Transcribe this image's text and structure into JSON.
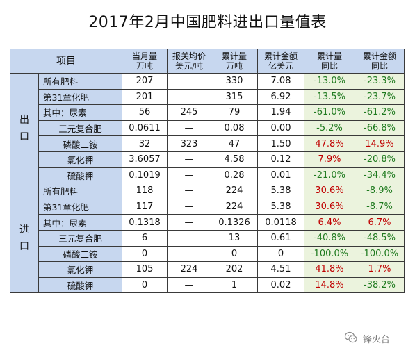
{
  "title": "2017年2月中国肥料进出口量值表",
  "headers": {
    "item": "项目",
    "month_qty": [
      "当月量",
      "万吨"
    ],
    "avg_price": [
      "报关均价",
      "美元/吨"
    ],
    "cum_qty": [
      "累计量",
      "万吨"
    ],
    "cum_value": [
      "累计金额",
      "亿美元"
    ],
    "qty_yoy": [
      "累计量",
      "同比"
    ],
    "value_yoy": [
      "累计金额",
      "同比"
    ]
  },
  "sections": [
    {
      "label": "出\n口",
      "rows": [
        {
          "name": "所有肥料",
          "sub": false,
          "month_qty": "207",
          "avg_price": "—",
          "cum_qty": "330",
          "cum_value": "7.08",
          "qty_yoy": "-13.0%",
          "value_yoy": "-23.3%"
        },
        {
          "name": "第31章化肥",
          "sub": false,
          "month_qty": "201",
          "avg_price": "—",
          "cum_qty": "315",
          "cum_value": "6.92",
          "qty_yoy": "-13.5%",
          "value_yoy": "-23.7%"
        },
        {
          "name": "其中：尿素",
          "sub": false,
          "month_qty": "56",
          "avg_price": "245",
          "cum_qty": "79",
          "cum_value": "1.94",
          "qty_yoy": "-61.0%",
          "value_yoy": "-61.2%"
        },
        {
          "name": "三元复合肥",
          "sub": true,
          "month_qty": "0.0611",
          "avg_price": "—",
          "cum_qty": "0.08",
          "cum_value": "0.00",
          "qty_yoy": "-5.2%",
          "value_yoy": "-66.8%"
        },
        {
          "name": "磷酸二铵",
          "sub": true,
          "month_qty": "32",
          "avg_price": "323",
          "cum_qty": "47",
          "cum_value": "1.50",
          "qty_yoy": "47.8%",
          "value_yoy": "14.9%"
        },
        {
          "name": "氯化钾",
          "sub": true,
          "month_qty": "3.6057",
          "avg_price": "—",
          "cum_qty": "4.58",
          "cum_value": "0.12",
          "qty_yoy": "7.9%",
          "value_yoy": "-20.8%"
        },
        {
          "name": "硫酸钾",
          "sub": true,
          "month_qty": "0.1019",
          "avg_price": "—",
          "cum_qty": "0.28",
          "cum_value": "0.01",
          "qty_yoy": "-21.0%",
          "value_yoy": "-34.4%"
        }
      ]
    },
    {
      "label": "进\n口",
      "rows": [
        {
          "name": "所有肥料",
          "sub": false,
          "month_qty": "118",
          "avg_price": "—",
          "cum_qty": "224",
          "cum_value": "5.38",
          "qty_yoy": "30.6%",
          "value_yoy": "-8.9%"
        },
        {
          "name": "第31章化肥",
          "sub": false,
          "month_qty": "117",
          "avg_price": "—",
          "cum_qty": "224",
          "cum_value": "5.38",
          "qty_yoy": "30.6%",
          "value_yoy": "-8.7%"
        },
        {
          "name": "其中：尿素",
          "sub": false,
          "month_qty": "0.1318",
          "avg_price": "—",
          "cum_qty": "0.1326",
          "cum_value": "0.0118",
          "qty_yoy": "6.4%",
          "value_yoy": "6.7%"
        },
        {
          "name": "三元复合肥",
          "sub": true,
          "month_qty": "6",
          "avg_price": "—",
          "cum_qty": "13",
          "cum_value": "0.61",
          "qty_yoy": "-40.8%",
          "value_yoy": "-48.5%"
        },
        {
          "name": "磷酸二铵",
          "sub": true,
          "month_qty": "0",
          "avg_price": "—",
          "cum_qty": "0",
          "cum_value": "0",
          "qty_yoy": "-100.0%",
          "value_yoy": "-100.0%"
        },
        {
          "name": "氯化钾",
          "sub": true,
          "month_qty": "105",
          "avg_price": "224",
          "cum_qty": "202",
          "cum_value": "4.51",
          "qty_yoy": "41.8%",
          "value_yoy": "1.7%"
        },
        {
          "name": "硫酸钾",
          "sub": true,
          "month_qty": "0",
          "avg_price": "—",
          "cum_qty": "1",
          "cum_value": "0.02",
          "qty_yoy": "14.8%",
          "value_yoy": "-38.2%"
        }
      ]
    }
  ],
  "watermark": {
    "text": "锋火台",
    "icon": "wechat-icon"
  },
  "colors": {
    "header_bg": "#c7d7ef",
    "pct_bg": "#ebf3dd",
    "negative": "#1f7a1f",
    "positive": "#c00000"
  }
}
